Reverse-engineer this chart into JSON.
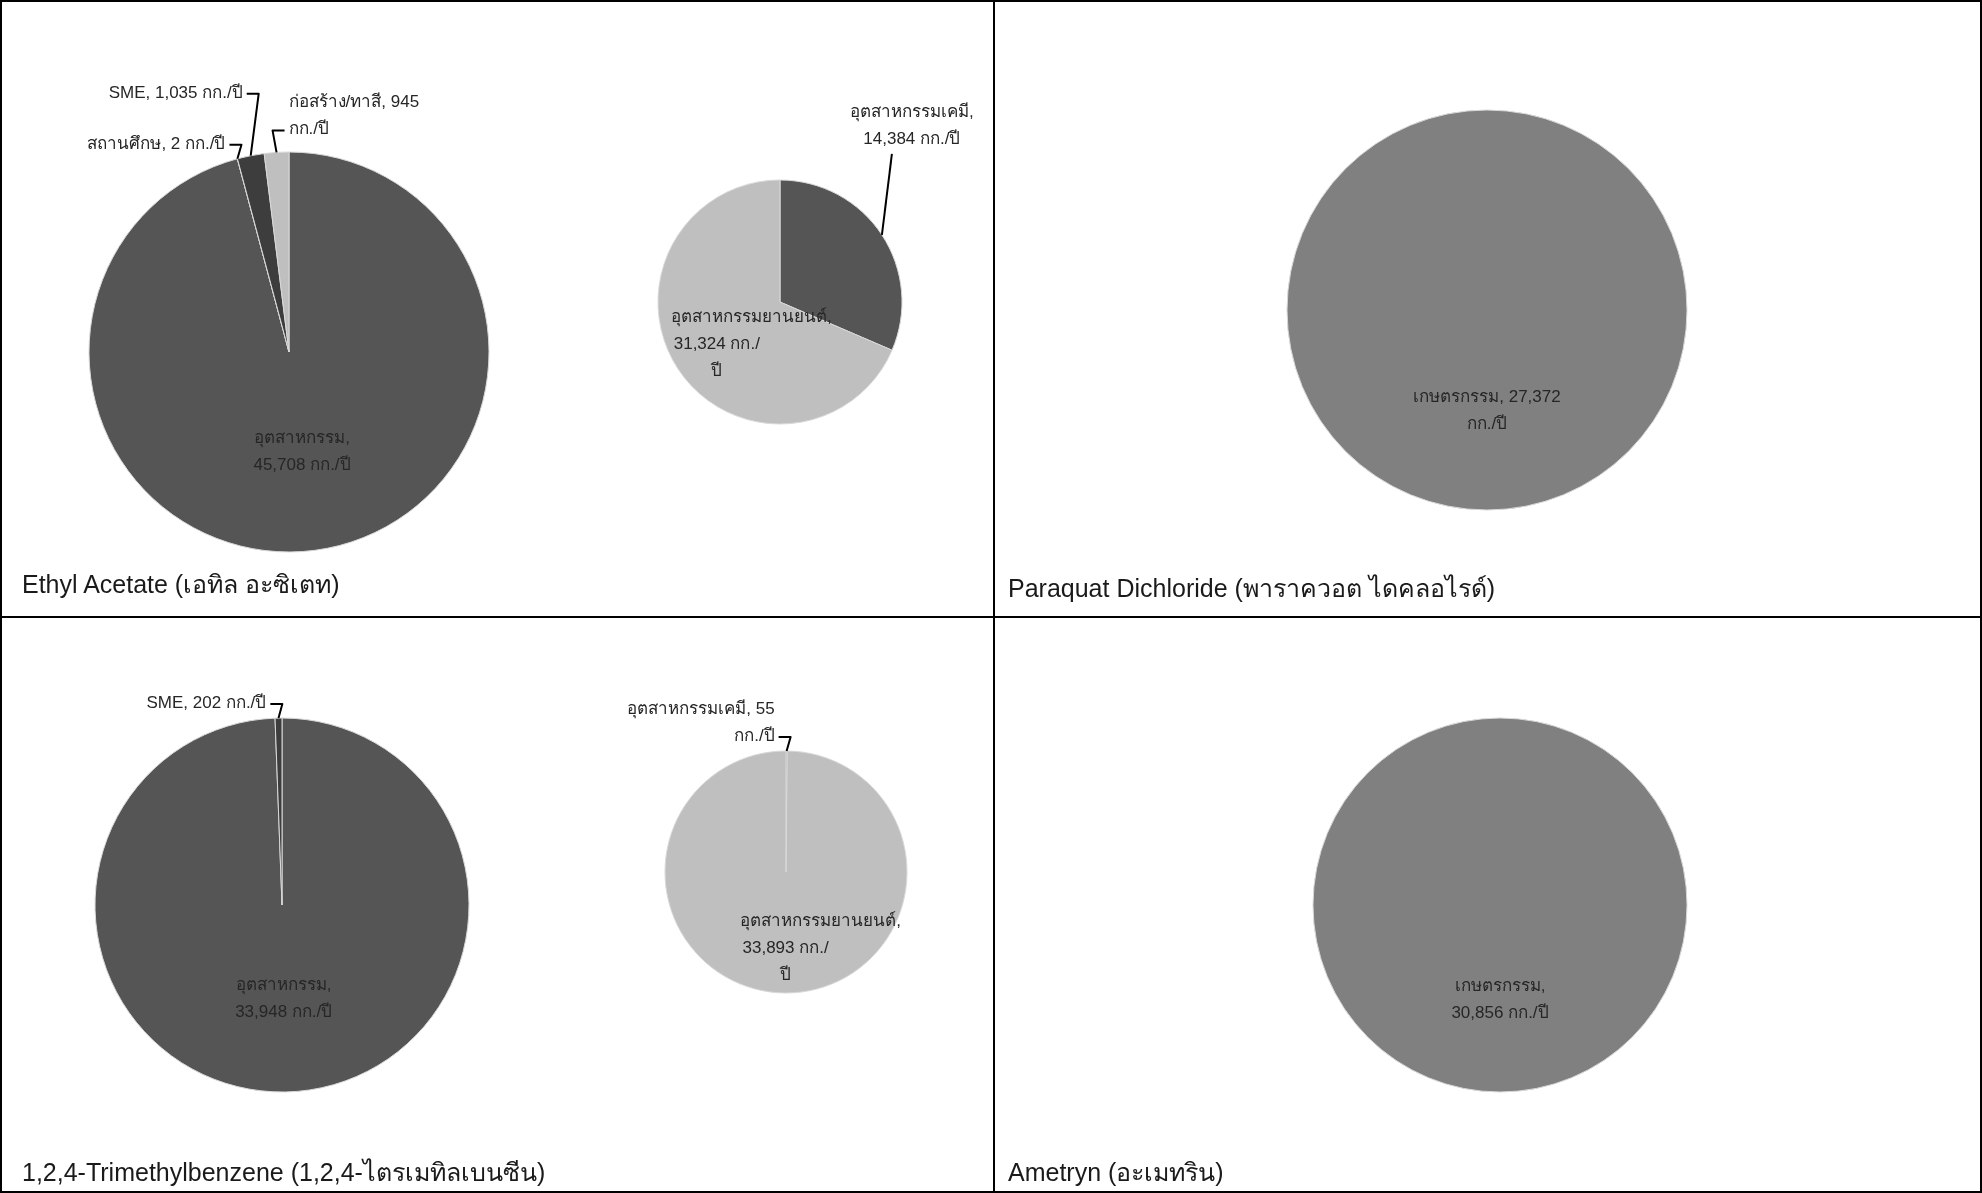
{
  "chart_data": [
    {
      "type": "pie",
      "title": "Ethyl Acetate (เอทิล อะซิเตท)",
      "categories": [
        "อุตสาหกรรม",
        "สถานศึกษ",
        "SME",
        "ก่อสร้าง/ทาสี"
      ],
      "values": [
        45708,
        2,
        1035,
        945
      ],
      "colors": [
        "#555555",
        "#4a4a4a",
        "#3d3d3d",
        "#bfbfbf"
      ],
      "value_labels": [
        ", 45,708 กก./ปี",
        ", 2 กก./ปี",
        ", 1,035 กก./ปี",
        ", 945 กก./ปี"
      ]
    },
    {
      "type": "pie",
      "categories": [
        "อุตสาหกรรมเคมี",
        "อุตสาหกรรมยานยนต์"
      ],
      "values": [
        14384,
        31324
      ],
      "colors": [
        "#555555",
        "#bfbfbf"
      ],
      "value_labels": [
        ", 14,384 กก./ปี",
        ", 31,324 กก./ปี"
      ]
    },
    {
      "type": "pie",
      "title": "Paraquat Dichloride (พาราควอต ไดคลอไรด์)",
      "categories": [
        "เกษตรกรรม"
      ],
      "values": [
        27372
      ],
      "colors": [
        "#808080"
      ],
      "value_labels": [
        ", 27,372 กก./ปี"
      ]
    },
    {
      "type": "pie",
      "title": "1,2,4-Trimethylbenzene (1,2,4-ไตรเมทิลเบนซีน)",
      "categories": [
        "อุตสาหกรรม",
        "SME"
      ],
      "values": [
        33948,
        202
      ],
      "colors": [
        "#555555",
        "#3d3d3d"
      ],
      "value_labels": [
        ", 33,948 กก./ปี",
        ", 202 กก./ปี"
      ]
    },
    {
      "type": "pie",
      "categories": [
        "อุตสาหกรรมเคมี",
        "อุตสาหกรรมยานยนต์"
      ],
      "values": [
        55,
        33893
      ],
      "colors": [
        "#555555",
        "#bfbfbf"
      ],
      "value_labels": [
        ", 55 กก./ปี",
        ", 33,893 กก./ปี"
      ]
    },
    {
      "type": "pie",
      "title": "Ametryn (อะเมทริน)",
      "categories": [
        "เกษตรกรรม"
      ],
      "values": [
        30856
      ],
      "colors": [
        "#808080"
      ],
      "value_labels": [
        ", 30,856 กก./ปี"
      ]
    }
  ]
}
